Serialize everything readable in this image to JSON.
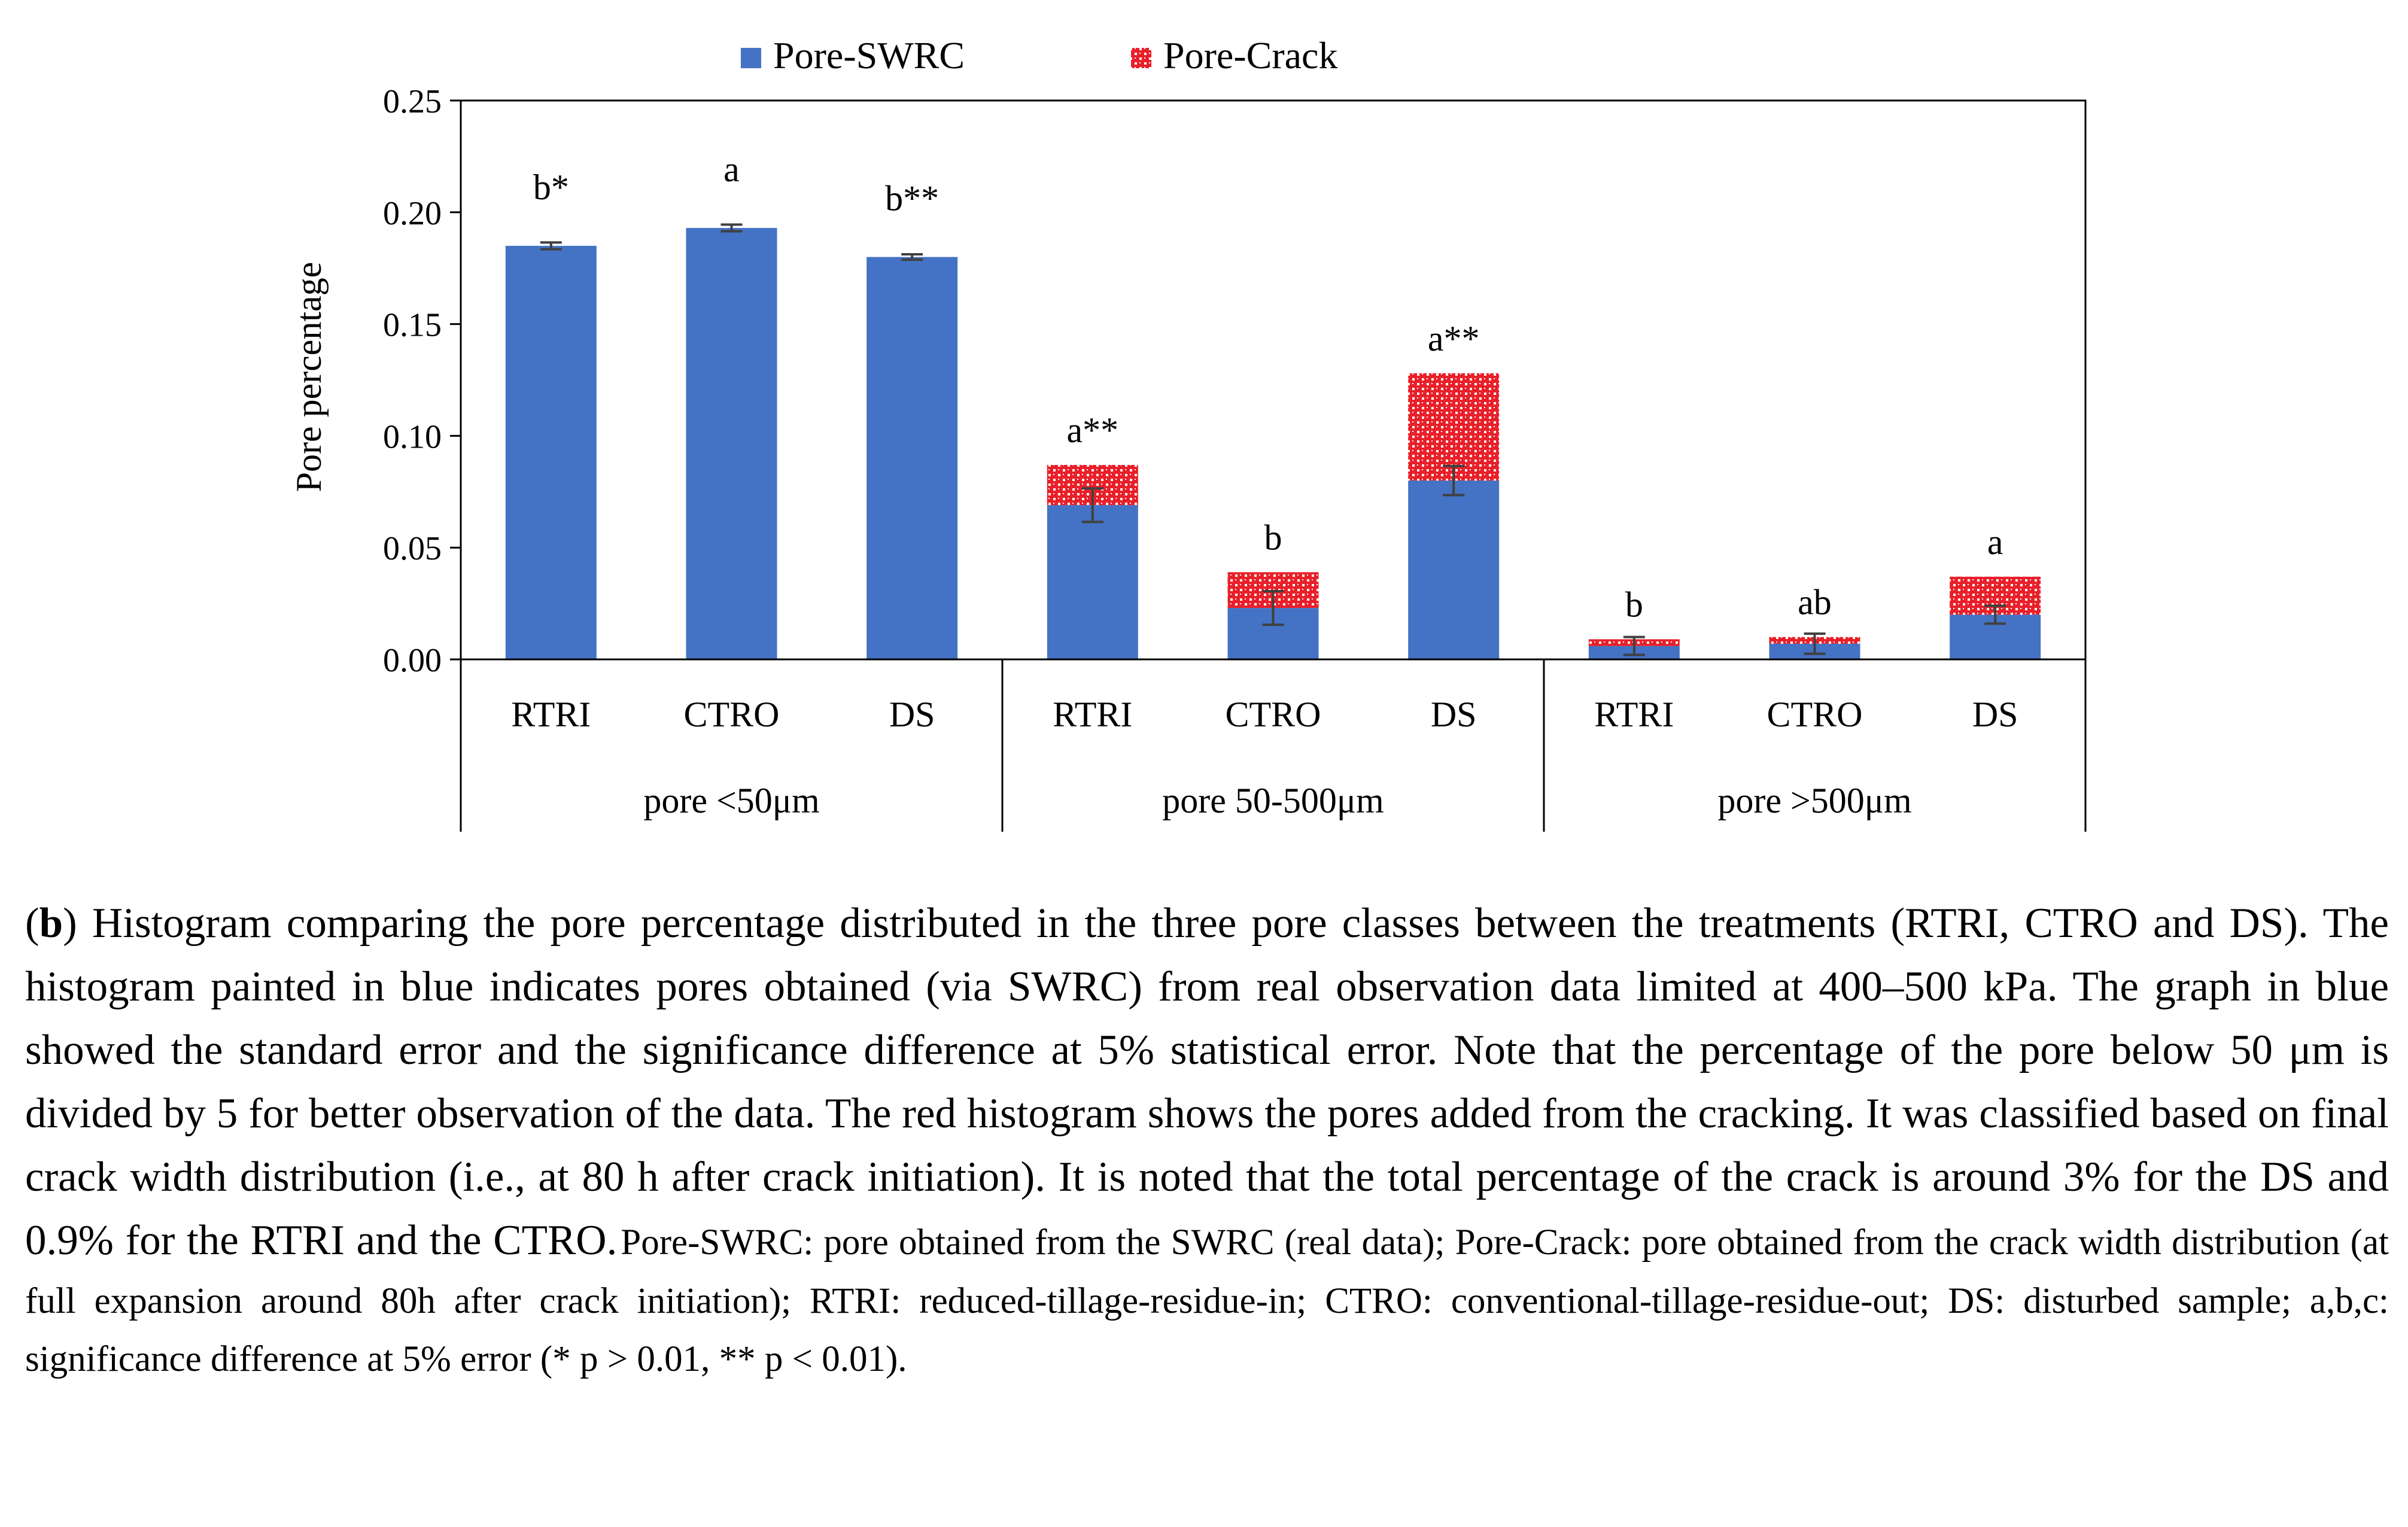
{
  "chart_data": {
    "type": "bar",
    "stacked": true,
    "ylabel": "Pore percentage",
    "ylim": [
      0,
      0.25
    ],
    "yticks": [
      "0.00",
      "0.05",
      "0.10",
      "0.15",
      "0.20",
      "0.25"
    ],
    "grid": false,
    "legend_position": "top-center",
    "groups": [
      {
        "label": "pore <50μm",
        "categories": [
          "RTRI",
          "CTRO",
          "DS"
        ]
      },
      {
        "label": "pore 50-500μm",
        "categories": [
          "RTRI",
          "CTRO",
          "DS"
        ]
      },
      {
        "label": "pore >500μm",
        "categories": [
          "RTRI",
          "CTRO",
          "DS"
        ]
      }
    ],
    "categories": [
      "RTRI",
      "CTRO",
      "DS",
      "RTRI",
      "CTRO",
      "DS",
      "RTRI",
      "CTRO",
      "DS"
    ],
    "series": [
      {
        "name": "Pore-SWRC",
        "color": "#4472C4",
        "pattern": "solid",
        "values": [
          0.185,
          0.193,
          0.18,
          0.069,
          0.023,
          0.08,
          0.006,
          0.007,
          0.02
        ],
        "errors": [
          0.0015,
          0.0015,
          0.0012,
          0.0075,
          0.0075,
          0.0065,
          0.004,
          0.0045,
          0.004
        ]
      },
      {
        "name": "Pore-Crack",
        "color": "#E8202A",
        "pattern": "checker",
        "values": [
          0,
          0,
          0,
          0.018,
          0.016,
          0.048,
          0.003,
          0.003,
          0.017
        ]
      }
    ],
    "significance_labels": [
      "b*",
      "a",
      "b**",
      "a**",
      "b",
      "a**",
      "b",
      "ab",
      "a"
    ]
  },
  "caption": {
    "panel_letter": "b",
    "main_text": ") Histogram comparing the pore percentage distributed in the three pore classes between the treatments (RTRI, CTRO and DS). The histogram painted in blue indicates pores obtained (via SWRC) from real observation data limited at 400–500 kPa. The graph in blue showed the standard error and the significance difference at 5% statistical error. Note that the percentage of the pore below 50 μm is divided by 5 for better observation of the data. The red histogram shows the pores added from the cracking. It was classified based on final crack width distribution (i.e., at 80 h after crack initiation). It is noted that the total percentage of the crack is around 3% for the DS and 0.9% for the RTRI and the CTRO.",
    "small_text": "Pore-SWRC: pore obtained from the SWRC (real data); Pore-Crack: pore obtained from the crack width distribution (at full expansion around 80h after crack initiation); RTRI: reduced-tillage-residue-in; CTRO: conventional-tillage-residue-out; DS: disturbed sample; a,b,c: significance difference at 5% error (* p > 0.01, ** p < 0.01)."
  }
}
